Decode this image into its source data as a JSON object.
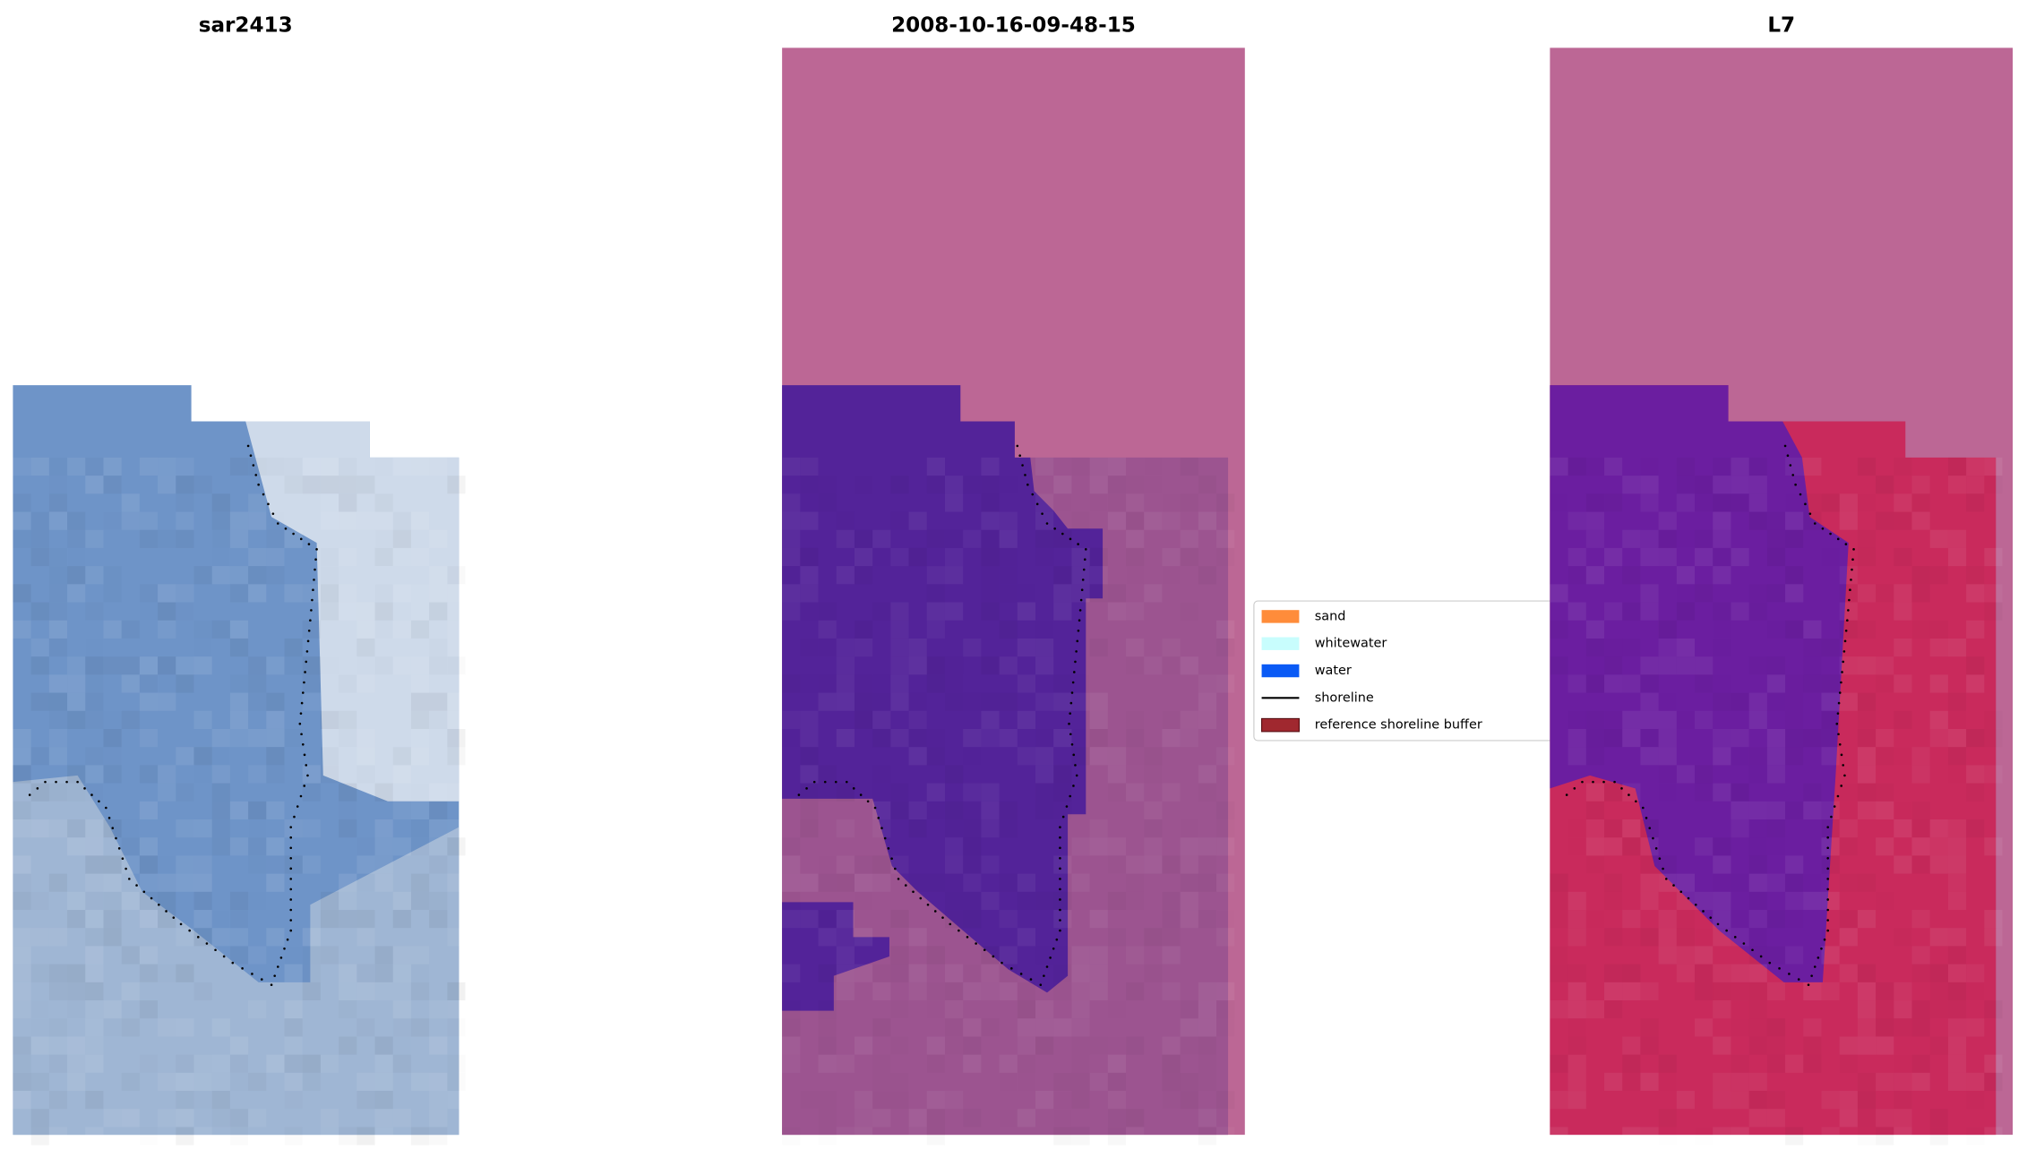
{
  "panels": [
    {
      "title": "sar2413"
    },
    {
      "title": "2008-10-16-09-48-15"
    },
    {
      "title": "L7"
    }
  ],
  "legend": {
    "items": [
      {
        "label": "sand",
        "color": "#ff8c3a"
      },
      {
        "label": "whitewater",
        "color": "#c8fdfd"
      },
      {
        "label": "water",
        "color": "#0a5af5"
      },
      {
        "label": "shoreline",
        "color": "#000000"
      },
      {
        "label": "reference shoreline buffer",
        "color": "#a0282f"
      }
    ]
  }
}
